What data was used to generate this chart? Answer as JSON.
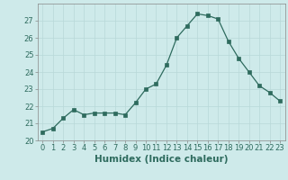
{
  "x": [
    0,
    1,
    2,
    3,
    4,
    5,
    6,
    7,
    8,
    9,
    10,
    11,
    12,
    13,
    14,
    15,
    16,
    17,
    18,
    19,
    20,
    21,
    22,
    23
  ],
  "y": [
    20.5,
    20.7,
    21.3,
    21.8,
    21.5,
    21.6,
    21.6,
    21.6,
    21.5,
    22.2,
    23.0,
    23.3,
    24.4,
    26.0,
    26.7,
    27.4,
    27.3,
    27.1,
    25.8,
    24.8,
    24.0,
    23.2,
    22.8,
    22.3
  ],
  "xlabel": "Humidex (Indice chaleur)",
  "ylim": [
    20,
    28
  ],
  "xlim": [
    -0.5,
    23.5
  ],
  "yticks": [
    20,
    21,
    22,
    23,
    24,
    25,
    26,
    27
  ],
  "line_color": "#2e6b5e",
  "marker": "s",
  "marker_size": 2.5,
  "bg_color": "#ceeaea",
  "grid_color": "#b8d8d8",
  "fig_bg": "#ceeaea",
  "tick_label_color": "#2e6b5e",
  "xlabel_color": "#2e6b5e",
  "tick_fontsize": 6.0,
  "xlabel_fontsize": 7.5
}
